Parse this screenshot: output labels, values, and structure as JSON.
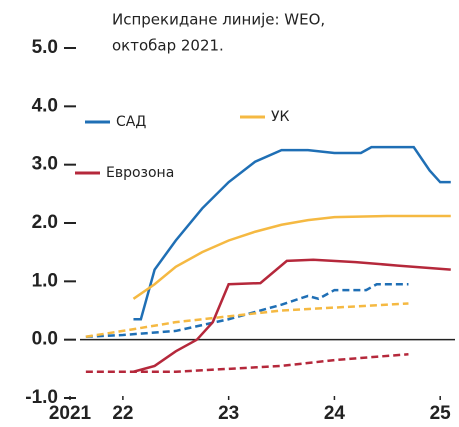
{
  "chart_data": {
    "type": "line",
    "annotation": [
      "Испрекидане линије: WEO,",
      "октобар 2021."
    ],
    "xlim": [
      2021.5,
      2025.14
    ],
    "xticks": [
      {
        "value": 2021.5,
        "label": "2021"
      },
      {
        "value": 2022,
        "label": "22"
      },
      {
        "value": 2023,
        "label": "23"
      },
      {
        "value": 2024,
        "label": "24"
      },
      {
        "value": 2025,
        "label": "25"
      }
    ],
    "ylim": [
      -1,
      5
    ],
    "yticks": [
      {
        "value": -1,
        "label": "-1.0"
      },
      {
        "value": 0,
        "label": "0.0"
      },
      {
        "value": 1,
        "label": "1.0"
      },
      {
        "value": 2,
        "label": "2.0"
      },
      {
        "value": 3,
        "label": "3.0"
      },
      {
        "value": 4,
        "label": "4.0"
      },
      {
        "value": 5,
        "label": "5.0"
      }
    ],
    "series": [
      {
        "name": "САД",
        "color": "#1f6fb5",
        "x": [
          2022.1,
          2022.17,
          2022.3,
          2022.5,
          2022.75,
          2023.0,
          2023.25,
          2023.5,
          2023.75,
          2024.0,
          2024.25,
          2024.35,
          2024.75,
          2024.9,
          2025.0,
          2025.1
        ],
        "values": [
          0.35,
          0.35,
          1.2,
          1.7,
          2.25,
          2.7,
          3.05,
          3.25,
          3.25,
          3.2,
          3.2,
          3.3,
          3.3,
          2.9,
          2.7,
          2.7
        ],
        "weo_x": [
          2021.65,
          2022.0,
          2022.5,
          2023.0,
          2023.5,
          2023.75,
          2023.85,
          2024.0,
          2024.3,
          2024.4,
          2024.7
        ],
        "weo_values": [
          0.05,
          0.08,
          0.15,
          0.35,
          0.6,
          0.75,
          0.7,
          0.85,
          0.85,
          0.95,
          0.95
        ]
      },
      {
        "name": "УК",
        "color": "#f5b942",
        "x": [
          2022.1,
          2022.3,
          2022.5,
          2022.75,
          2023.0,
          2023.25,
          2023.5,
          2023.75,
          2024.0,
          2024.5,
          2025.1
        ],
        "values": [
          0.7,
          0.95,
          1.25,
          1.5,
          1.7,
          1.85,
          1.97,
          2.05,
          2.1,
          2.12,
          2.12
        ],
        "weo_x": [
          2021.65,
          2022.0,
          2022.5,
          2023.0,
          2023.5,
          2024.0,
          2024.7
        ],
        "weo_values": [
          0.05,
          0.15,
          0.3,
          0.4,
          0.5,
          0.55,
          0.62
        ]
      },
      {
        "name": "Еврозона",
        "color": "#b5283b",
        "x": [
          2022.1,
          2022.3,
          2022.5,
          2022.7,
          2022.85,
          2023.0,
          2023.3,
          2023.55,
          2023.8,
          2024.2,
          2024.6,
          2025.1
        ],
        "values": [
          -0.55,
          -0.45,
          -0.2,
          0.0,
          0.3,
          0.95,
          0.97,
          1.35,
          1.37,
          1.33,
          1.27,
          1.2
        ],
        "weo_x": [
          2021.65,
          2022.0,
          2022.5,
          2023.0,
          2023.5,
          2024.0,
          2024.7
        ],
        "weo_values": [
          -0.55,
          -0.55,
          -0.55,
          -0.5,
          -0.45,
          -0.35,
          -0.25
        ]
      }
    ]
  }
}
